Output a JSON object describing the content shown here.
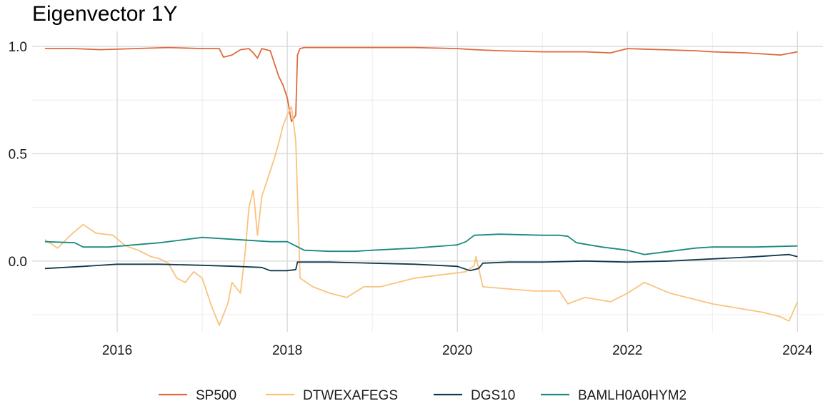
{
  "chart_data": {
    "type": "line",
    "title": "Eigenvector 1Y",
    "xlabel": "",
    "ylabel": "",
    "xlim": [
      2015.0,
      2024.3
    ],
    "ylim": [
      -0.33,
      1.07
    ],
    "x_ticks": [
      2016,
      2018,
      2020,
      2022,
      2024
    ],
    "x_tick_labels": [
      "2016",
      "2018",
      "2020",
      "2022",
      "2024"
    ],
    "y_ticks": [
      0.0,
      0.5,
      1.0
    ],
    "y_tick_labels": [
      "0.0",
      "0.5",
      "1.0"
    ],
    "grid": true,
    "legend_position": "bottom",
    "colors": {
      "SP500": "#de6a3e",
      "DTWEXAFEGS": "#f9c37f",
      "DGS10": "#113a4f",
      "BAMLH0A0HYM2": "#1b8a80"
    },
    "series": [
      {
        "name": "SP500",
        "color": "#de6a3e",
        "x": [
          2015.15,
          2015.5,
          2015.8,
          2016.2,
          2016.6,
          2017.0,
          2017.2,
          2017.25,
          2017.35,
          2017.45,
          2017.55,
          2017.6,
          2017.65,
          2017.7,
          2017.8,
          2017.85,
          2017.9,
          2017.95,
          2018.0,
          2018.05,
          2018.1,
          2018.12,
          2018.15,
          2018.2,
          2018.5,
          2019.0,
          2019.5,
          2020.0,
          2020.2,
          2020.5,
          2021.0,
          2021.5,
          2021.8,
          2022.0,
          2022.4,
          2022.8,
          2023.0,
          2023.4,
          2023.6,
          2023.8,
          2024.0
        ],
        "y": [
          0.99,
          0.99,
          0.985,
          0.99,
          0.995,
          0.99,
          0.99,
          0.95,
          0.96,
          0.985,
          0.99,
          0.97,
          0.945,
          0.99,
          0.98,
          0.92,
          0.86,
          0.82,
          0.76,
          0.65,
          0.68,
          0.96,
          0.99,
          0.995,
          0.995,
          0.995,
          0.995,
          0.99,
          0.985,
          0.98,
          0.975,
          0.975,
          0.97,
          0.99,
          0.985,
          0.98,
          0.975,
          0.97,
          0.965,
          0.96,
          0.975
        ]
      },
      {
        "name": "DTWEXAFEGS",
        "color": "#f9c37f",
        "x": [
          2015.15,
          2015.3,
          2015.45,
          2015.6,
          2015.75,
          2015.95,
          2016.1,
          2016.25,
          2016.4,
          2016.5,
          2016.6,
          2016.7,
          2016.8,
          2016.9,
          2017.0,
          2017.1,
          2017.2,
          2017.25,
          2017.3,
          2017.35,
          2017.45,
          2017.5,
          2017.55,
          2017.6,
          2017.65,
          2017.7,
          2017.8,
          2017.85,
          2017.9,
          2017.95,
          2018.0,
          2018.05,
          2018.1,
          2018.15,
          2018.3,
          2018.5,
          2018.7,
          2018.9,
          2019.1,
          2019.3,
          2019.5,
          2019.7,
          2019.9,
          2020.1,
          2020.2,
          2020.22,
          2020.3,
          2020.6,
          2020.9,
          2021.2,
          2021.3,
          2021.5,
          2021.8,
          2022.0,
          2022.2,
          2022.5,
          2022.8,
          2023.0,
          2023.3,
          2023.6,
          2023.8,
          2023.9,
          2024.0
        ],
        "y": [
          0.1,
          0.06,
          0.12,
          0.17,
          0.13,
          0.12,
          0.07,
          0.05,
          0.02,
          0.01,
          -0.01,
          -0.08,
          -0.1,
          -0.05,
          -0.08,
          -0.2,
          -0.3,
          -0.25,
          -0.2,
          -0.1,
          -0.15,
          0.02,
          0.25,
          0.33,
          0.12,
          0.3,
          0.42,
          0.48,
          0.55,
          0.63,
          0.68,
          0.72,
          0.56,
          -0.08,
          -0.12,
          -0.15,
          -0.17,
          -0.12,
          -0.12,
          -0.1,
          -0.08,
          -0.07,
          -0.06,
          -0.05,
          -0.02,
          0.02,
          -0.12,
          -0.13,
          -0.14,
          -0.14,
          -0.2,
          -0.17,
          -0.19,
          -0.15,
          -0.1,
          -0.15,
          -0.18,
          -0.2,
          -0.22,
          -0.24,
          -0.26,
          -0.28,
          -0.19
        ]
      },
      {
        "name": "DGS10",
        "color": "#113a4f",
        "x": [
          2015.15,
          2015.6,
          2016.0,
          2016.5,
          2017.0,
          2017.4,
          2017.7,
          2017.8,
          2018.0,
          2018.1,
          2018.12,
          2018.5,
          2019.0,
          2019.5,
          2020.0,
          2020.15,
          2020.25,
          2020.3,
          2020.6,
          2021.0,
          2021.5,
          2022.0,
          2022.5,
          2023.0,
          2023.5,
          2023.9,
          2024.0
        ],
        "y": [
          -0.035,
          -0.025,
          -0.015,
          -0.015,
          -0.02,
          -0.025,
          -0.03,
          -0.045,
          -0.045,
          -0.04,
          -0.005,
          -0.005,
          -0.01,
          -0.015,
          -0.025,
          -0.045,
          -0.035,
          -0.01,
          -0.005,
          -0.005,
          0.0,
          -0.005,
          0.0,
          0.01,
          0.02,
          0.03,
          0.02
        ]
      },
      {
        "name": "BAMLH0A0HYM2",
        "color": "#1b8a80",
        "x": [
          2015.15,
          2015.5,
          2015.6,
          2015.9,
          2016.2,
          2016.5,
          2016.8,
          2017.0,
          2017.2,
          2017.4,
          2017.6,
          2017.8,
          2018.0,
          2018.1,
          2018.2,
          2018.5,
          2018.8,
          2019.0,
          2019.5,
          2020.0,
          2020.1,
          2020.2,
          2020.5,
          2021.0,
          2021.2,
          2021.3,
          2021.4,
          2021.7,
          2022.0,
          2022.2,
          2022.5,
          2022.8,
          2023.0,
          2023.5,
          2024.0
        ],
        "y": [
          0.09,
          0.085,
          0.065,
          0.065,
          0.075,
          0.085,
          0.1,
          0.11,
          0.105,
          0.1,
          0.095,
          0.09,
          0.09,
          0.07,
          0.05,
          0.045,
          0.045,
          0.05,
          0.06,
          0.075,
          0.09,
          0.12,
          0.125,
          0.12,
          0.12,
          0.115,
          0.085,
          0.065,
          0.05,
          0.03,
          0.045,
          0.06,
          0.065,
          0.065,
          0.07
        ]
      }
    ]
  }
}
